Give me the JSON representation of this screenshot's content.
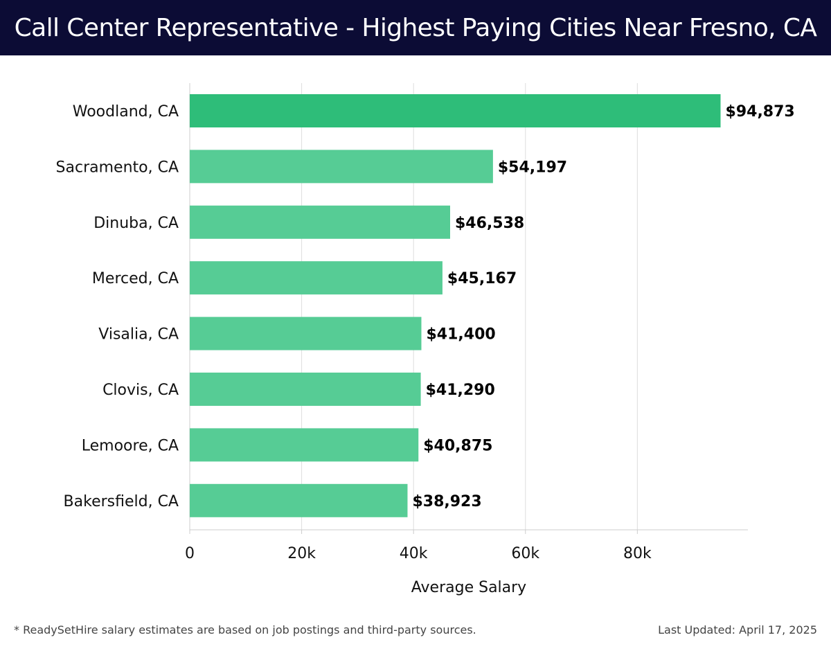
{
  "title": "Call Center Representative - Highest Paying Cities Near Fresno, CA",
  "footnote": "* ReadySetHire salary estimates are based on job postings and third-party sources.",
  "last_updated": "Last Updated: April 17, 2025",
  "colors": {
    "header_bg": "#0c0c35",
    "top_bar": "#2ebd79",
    "bar": "#56cc95",
    "grid": "#dddddd"
  },
  "chart_data": {
    "type": "bar",
    "orientation": "horizontal",
    "categories": [
      "Woodland, CA",
      "Sacramento, CA",
      "Dinuba, CA",
      "Merced, CA",
      "Visalia, CA",
      "Clovis, CA",
      "Lemoore, CA",
      "Bakersfield, CA"
    ],
    "values": [
      94873,
      54197,
      46538,
      45167,
      41400,
      41290,
      40875,
      38923
    ],
    "value_labels": [
      "$94,873",
      "$54,197",
      "$46,538",
      "$45,167",
      "$41,400",
      "$41,290",
      "$40,875",
      "$38,923"
    ],
    "xlabel": "Average Salary",
    "ylabel": "",
    "xlim": [
      0,
      100000
    ],
    "xticks": [
      0,
      20000,
      40000,
      60000,
      80000
    ],
    "xtick_labels": [
      "0",
      "20k",
      "40k",
      "60k",
      "80k"
    ],
    "grid": true
  }
}
